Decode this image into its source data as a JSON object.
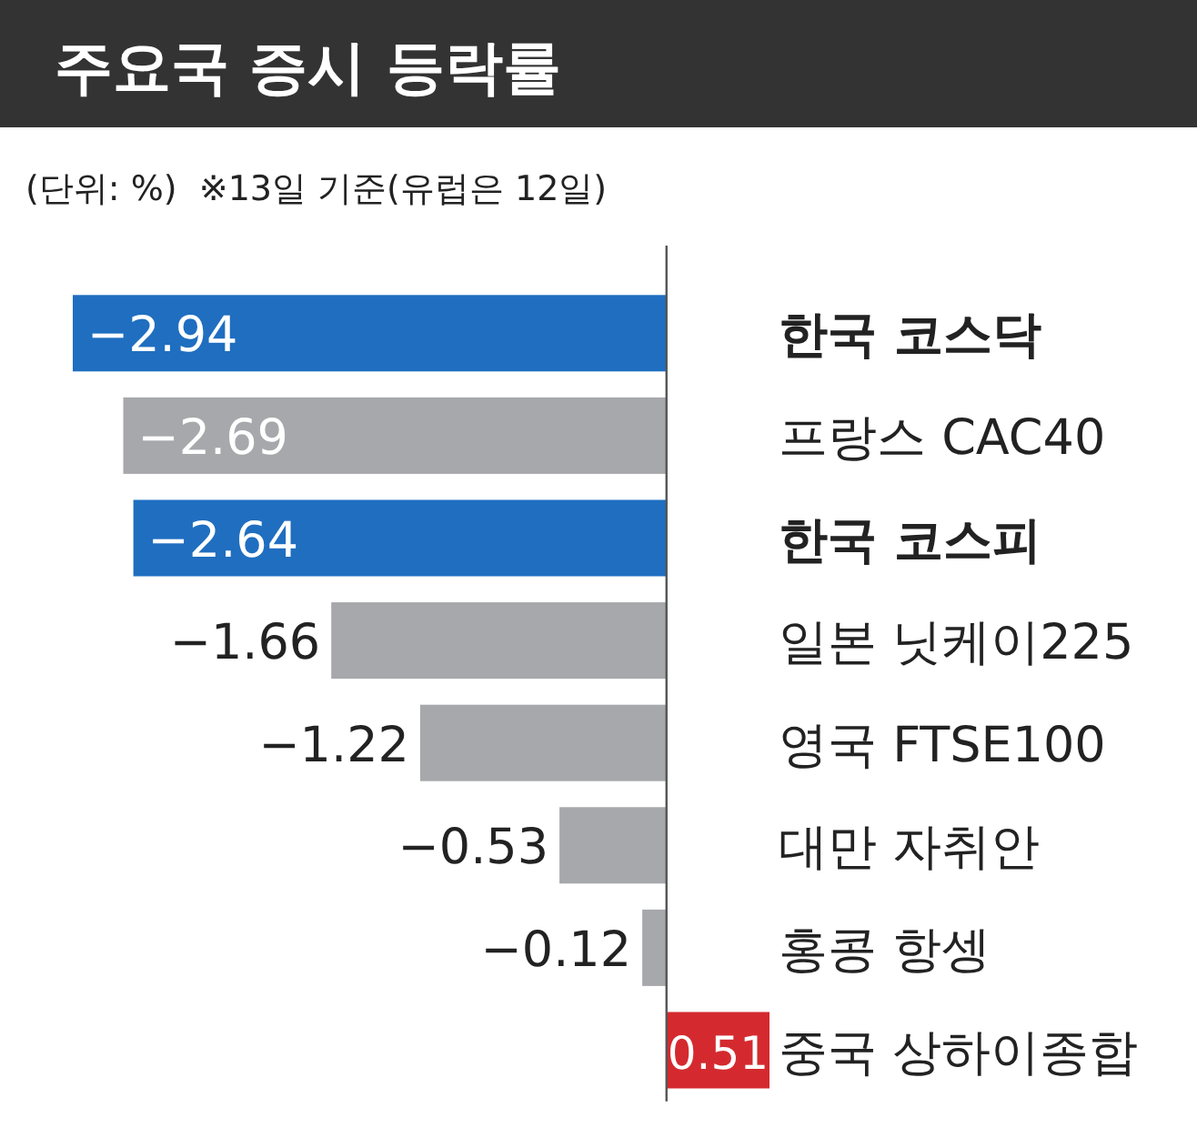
{
  "chart_data": {
    "type": "bar",
    "orientation": "horizontal",
    "data_labels": true,
    "title": "주요국 증시 등락률",
    "subtitle": "(단위: %)  ※13일 기준(유럽은 12일)",
    "categories": [
      "한국 코스닥",
      "프랑스 CAC40",
      "한국 코스피",
      "일본 닛케이225",
      "영국 FTSE100",
      "대만 자취안",
      "홍콩 항셍",
      "중국 상하이종합"
    ],
    "values": [
      -2.94,
      -2.69,
      -2.64,
      -1.66,
      -1.22,
      -0.53,
      -0.12,
      0.51
    ],
    "colors": [
      "#1f6ec0",
      "#a6a8ab",
      "#1f6ec0",
      "#a6a8ab",
      "#a6a8ab",
      "#a6a8ab",
      "#a6a8ab",
      "#d42a2f"
    ]
  }
}
